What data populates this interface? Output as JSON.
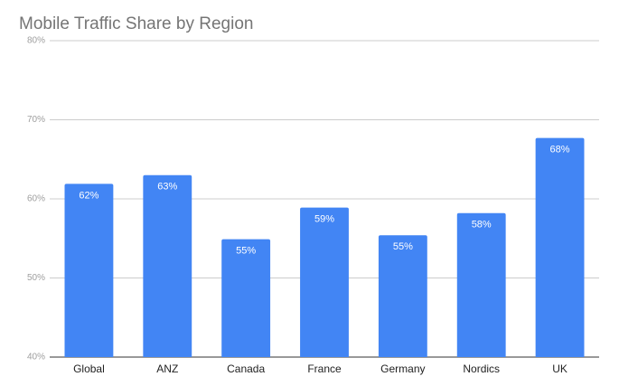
{
  "chart_data": {
    "type": "bar",
    "title": "Mobile Traffic Share by Region",
    "categories": [
      "Global",
      "ANZ",
      "Canada",
      "France",
      "Germany",
      "Nordics",
      "UK"
    ],
    "values": [
      61.9,
      63,
      54.9,
      58.9,
      55.4,
      58.2,
      67.7
    ],
    "value_labels": [
      "62%",
      "63%",
      "55%",
      "59%",
      "55%",
      "58%",
      "68%"
    ],
    "color": "#4285f4",
    "ylim": [
      40,
      80
    ],
    "yticks": [
      {
        "value": 40,
        "label": "40%"
      },
      {
        "value": 50,
        "label": "50%"
      },
      {
        "value": 60,
        "label": "60%"
      },
      {
        "value": 70,
        "label": "70%"
      },
      {
        "value": 80,
        "label": "80%"
      }
    ],
    "grid": true
  }
}
